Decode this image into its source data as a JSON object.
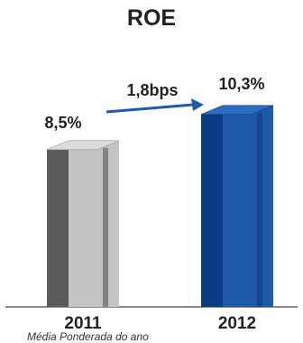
{
  "chart_data": {
    "type": "bar",
    "title": "ROE",
    "categories": [
      "2011",
      "2012"
    ],
    "values": [
      8.5,
      10.3
    ],
    "value_labels": [
      "8,5%",
      "10,3%"
    ],
    "annotation": "1,8bps",
    "xlabel": "",
    "ylabel": "",
    "ylim": [
      0,
      12
    ],
    "grid": false,
    "legend": "none"
  },
  "colors": {
    "bar_2011_front": "#c4c4c4",
    "bar_2011_side": "#5a5a5a",
    "bar_2012_front": "#1f5aa8",
    "bar_2012_side": "#0b3b80",
    "arrow": "#1f5aa8",
    "text": "#222222"
  },
  "footnote": "Média Ponderada do ano"
}
